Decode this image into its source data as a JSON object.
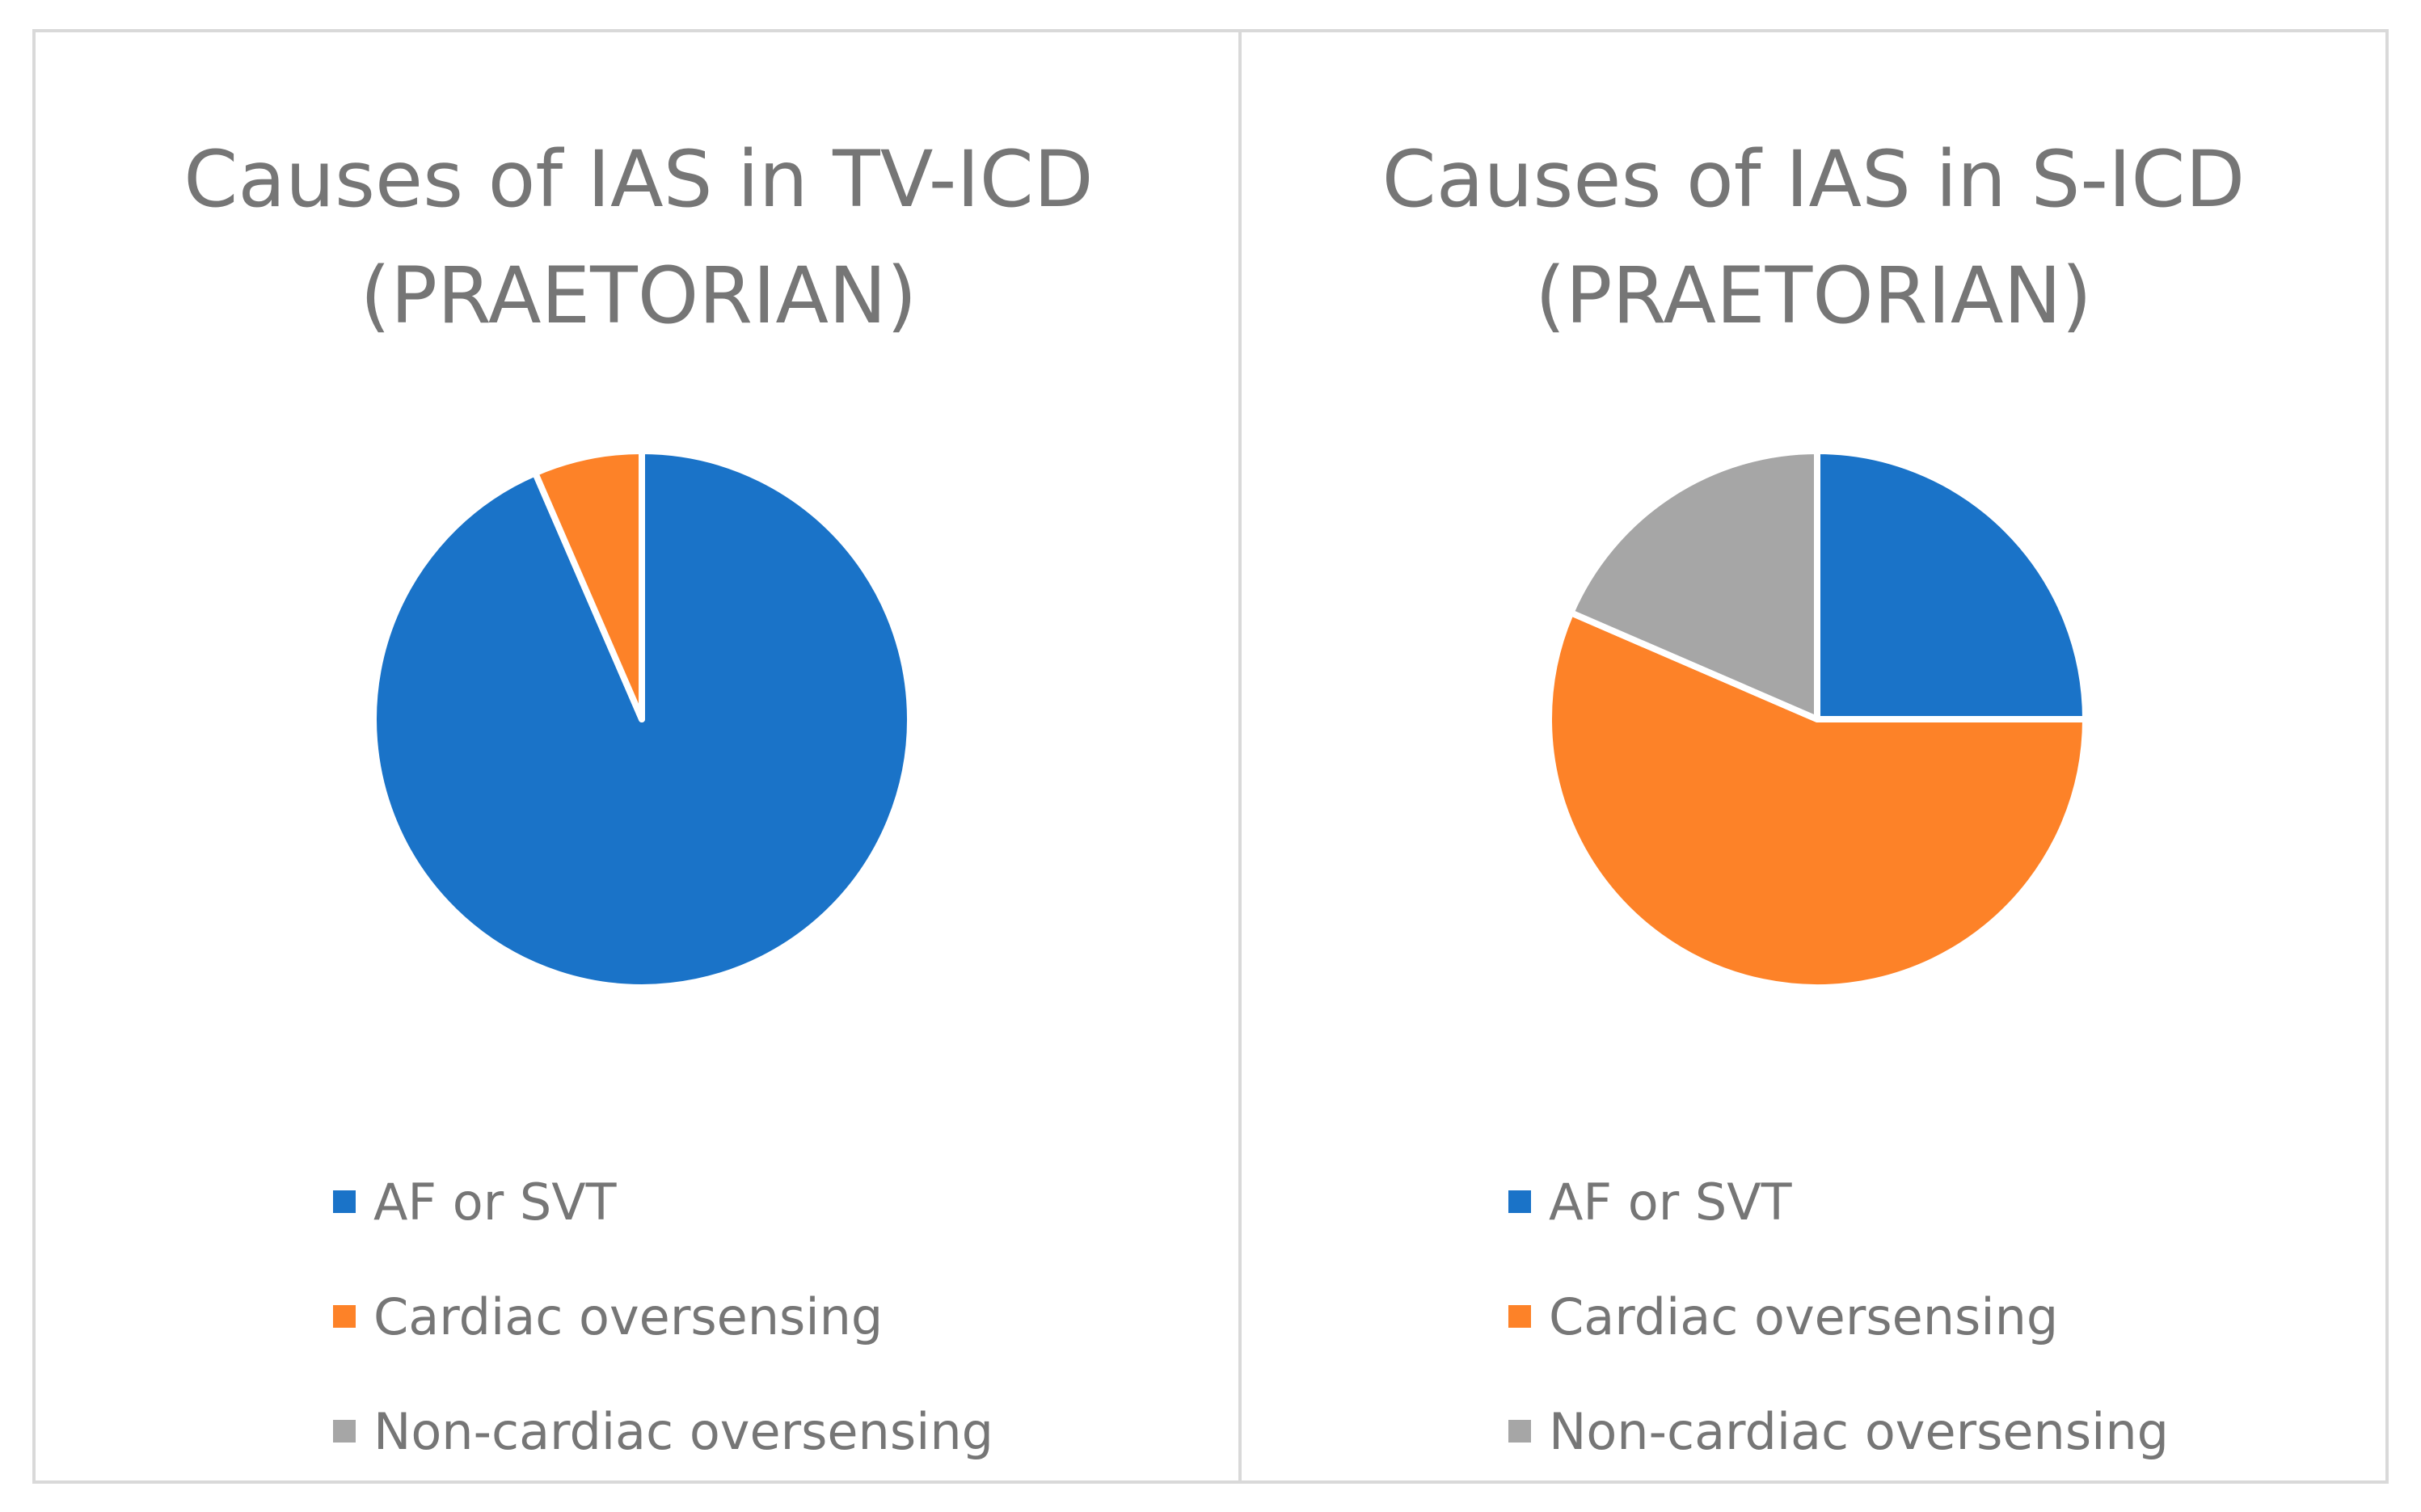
{
  "chart_data": [
    {
      "type": "pie",
      "title_lines": [
        "Causes of IAS in TV-ICD",
        "(PRAETORIAN)"
      ],
      "categories": [
        "AF or SVT",
        "Cardiac oversensing",
        "Non-cardiac oversensing"
      ],
      "values": [
        93.5,
        6.5,
        0
      ],
      "colors": [
        "#1a73c8",
        "#fd8228",
        "#a6a6a6"
      ],
      "legend_position": "bottom"
    },
    {
      "type": "pie",
      "title_lines": [
        "Causes of IAS in S-ICD",
        "(PRAETORIAN)"
      ],
      "categories": [
        "AF or SVT",
        "Cardiac oversensing",
        "Non-cardiac oversensing"
      ],
      "values": [
        25,
        56.5,
        18.5
      ],
      "colors": [
        "#1a73c8",
        "#fd8228",
        "#a6a6a6"
      ],
      "legend_position": "bottom"
    }
  ]
}
